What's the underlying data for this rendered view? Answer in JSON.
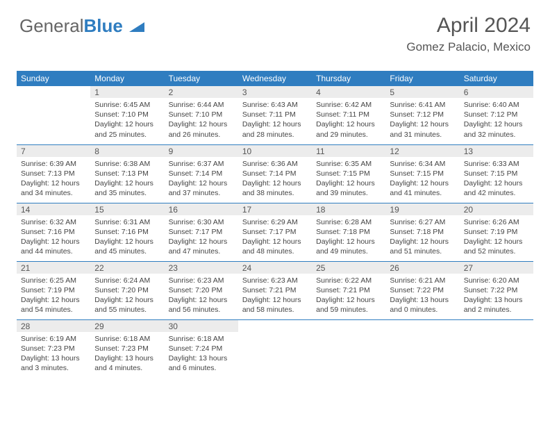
{
  "brand": {
    "part1": "General",
    "part2": "Blue"
  },
  "title": "April 2024",
  "location": "Gomez Palacio, Mexico",
  "colors": {
    "header_bg": "#2f7dc0",
    "header_text": "#ffffff",
    "daynum_bg": "#ececec",
    "text": "#555555",
    "body_text": "#444444",
    "rule": "#2f7dc0"
  },
  "weekdays": [
    "Sunday",
    "Monday",
    "Tuesday",
    "Wednesday",
    "Thursday",
    "Friday",
    "Saturday"
  ],
  "start_offset": 1,
  "days": [
    {
      "n": 1,
      "sr": "6:45 AM",
      "ss": "7:10 PM",
      "dl": "12 hours and 25 minutes."
    },
    {
      "n": 2,
      "sr": "6:44 AM",
      "ss": "7:10 PM",
      "dl": "12 hours and 26 minutes."
    },
    {
      "n": 3,
      "sr": "6:43 AM",
      "ss": "7:11 PM",
      "dl": "12 hours and 28 minutes."
    },
    {
      "n": 4,
      "sr": "6:42 AM",
      "ss": "7:11 PM",
      "dl": "12 hours and 29 minutes."
    },
    {
      "n": 5,
      "sr": "6:41 AM",
      "ss": "7:12 PM",
      "dl": "12 hours and 31 minutes."
    },
    {
      "n": 6,
      "sr": "6:40 AM",
      "ss": "7:12 PM",
      "dl": "12 hours and 32 minutes."
    },
    {
      "n": 7,
      "sr": "6:39 AM",
      "ss": "7:13 PM",
      "dl": "12 hours and 34 minutes."
    },
    {
      "n": 8,
      "sr": "6:38 AM",
      "ss": "7:13 PM",
      "dl": "12 hours and 35 minutes."
    },
    {
      "n": 9,
      "sr": "6:37 AM",
      "ss": "7:14 PM",
      "dl": "12 hours and 37 minutes."
    },
    {
      "n": 10,
      "sr": "6:36 AM",
      "ss": "7:14 PM",
      "dl": "12 hours and 38 minutes."
    },
    {
      "n": 11,
      "sr": "6:35 AM",
      "ss": "7:15 PM",
      "dl": "12 hours and 39 minutes."
    },
    {
      "n": 12,
      "sr": "6:34 AM",
      "ss": "7:15 PM",
      "dl": "12 hours and 41 minutes."
    },
    {
      "n": 13,
      "sr": "6:33 AM",
      "ss": "7:15 PM",
      "dl": "12 hours and 42 minutes."
    },
    {
      "n": 14,
      "sr": "6:32 AM",
      "ss": "7:16 PM",
      "dl": "12 hours and 44 minutes."
    },
    {
      "n": 15,
      "sr": "6:31 AM",
      "ss": "7:16 PM",
      "dl": "12 hours and 45 minutes."
    },
    {
      "n": 16,
      "sr": "6:30 AM",
      "ss": "7:17 PM",
      "dl": "12 hours and 47 minutes."
    },
    {
      "n": 17,
      "sr": "6:29 AM",
      "ss": "7:17 PM",
      "dl": "12 hours and 48 minutes."
    },
    {
      "n": 18,
      "sr": "6:28 AM",
      "ss": "7:18 PM",
      "dl": "12 hours and 49 minutes."
    },
    {
      "n": 19,
      "sr": "6:27 AM",
      "ss": "7:18 PM",
      "dl": "12 hours and 51 minutes."
    },
    {
      "n": 20,
      "sr": "6:26 AM",
      "ss": "7:19 PM",
      "dl": "12 hours and 52 minutes."
    },
    {
      "n": 21,
      "sr": "6:25 AM",
      "ss": "7:19 PM",
      "dl": "12 hours and 54 minutes."
    },
    {
      "n": 22,
      "sr": "6:24 AM",
      "ss": "7:20 PM",
      "dl": "12 hours and 55 minutes."
    },
    {
      "n": 23,
      "sr": "6:23 AM",
      "ss": "7:20 PM",
      "dl": "12 hours and 56 minutes."
    },
    {
      "n": 24,
      "sr": "6:23 AM",
      "ss": "7:21 PM",
      "dl": "12 hours and 58 minutes."
    },
    {
      "n": 25,
      "sr": "6:22 AM",
      "ss": "7:21 PM",
      "dl": "12 hours and 59 minutes."
    },
    {
      "n": 26,
      "sr": "6:21 AM",
      "ss": "7:22 PM",
      "dl": "13 hours and 0 minutes."
    },
    {
      "n": 27,
      "sr": "6:20 AM",
      "ss": "7:22 PM",
      "dl": "13 hours and 2 minutes."
    },
    {
      "n": 28,
      "sr": "6:19 AM",
      "ss": "7:23 PM",
      "dl": "13 hours and 3 minutes."
    },
    {
      "n": 29,
      "sr": "6:18 AM",
      "ss": "7:23 PM",
      "dl": "13 hours and 4 minutes."
    },
    {
      "n": 30,
      "sr": "6:18 AM",
      "ss": "7:24 PM",
      "dl": "13 hours and 6 minutes."
    }
  ],
  "labels": {
    "sunrise": "Sunrise:",
    "sunset": "Sunset:",
    "daylight": "Daylight:"
  }
}
